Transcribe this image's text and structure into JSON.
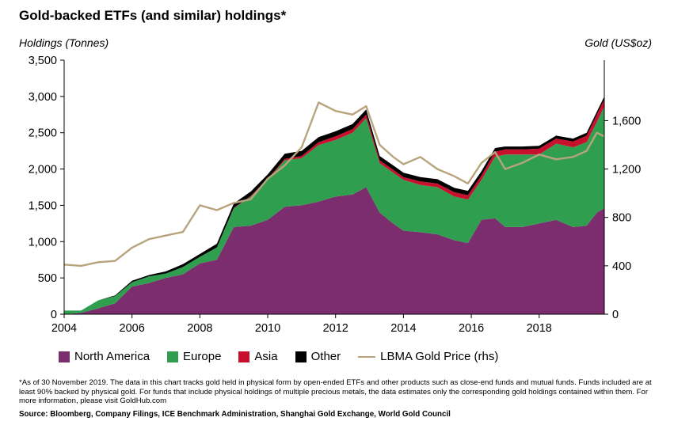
{
  "title": "Gold-backed ETFs (and similar) holdings*",
  "footnote": "*As of 30 November 2019. The data in this chart tracks gold held in physical form by open-ended  ETFs and other products such as close-end funds and mutual funds. Funds included are at least 90%  backed by physical gold. For funds that include physical holdings of multiple precious  metals, the data estimates only the corresponding gold holdings contained within them. For more information, please visit GoldHub.com",
  "source": "Source: Bloomberg, Company Filings, ICE Benchmark Administration,  Shanghai Gold Exchange, World Gold Council",
  "colors": {
    "north_america": "#7b2d6e",
    "europe": "#2f9f4f",
    "asia": "#c8102e",
    "other": "#000000",
    "gold_price": "#b8a47c"
  },
  "chart_data": {
    "type": "area",
    "title": "Gold-backed ETFs (and similar) holdings*",
    "ylabel": "Holdings (Tonnes)",
    "y2label": "Gold (US$oz)",
    "xlim": [
      2004,
      2019.92
    ],
    "ylim": [
      0,
      3500
    ],
    "y2lim": [
      0,
      2100
    ],
    "x_ticks": [
      "2004",
      "2006",
      "2008",
      "2010",
      "2012",
      "2014",
      "2016",
      "2018"
    ],
    "y_ticks": [
      "0",
      "500",
      "1,000",
      "1,500",
      "2,000",
      "2,500",
      "3,000",
      "3,500"
    ],
    "y2_ticks": [
      "0",
      "400",
      "800",
      "1,200",
      "1,600"
    ],
    "grid": false,
    "legend_position": "bottom",
    "x": [
      2004.0,
      2004.5,
      2005.0,
      2005.5,
      2006.0,
      2006.5,
      2007.0,
      2007.5,
      2008.0,
      2008.5,
      2009.0,
      2009.5,
      2010.0,
      2010.5,
      2011.0,
      2011.5,
      2012.0,
      2012.5,
      2012.9,
      2013.3,
      2013.7,
      2014.0,
      2014.5,
      2015.0,
      2015.5,
      2015.9,
      2016.3,
      2016.7,
      2017.0,
      2017.5,
      2018.0,
      2018.5,
      2019.0,
      2019.4,
      2019.7,
      2019.92
    ],
    "series": [
      {
        "name": "North America",
        "values": [
          0,
          20,
          80,
          150,
          380,
          430,
          500,
          550,
          700,
          750,
          1200,
          1220,
          1300,
          1480,
          1500,
          1550,
          1620,
          1650,
          1750,
          1400,
          1250,
          1150,
          1130,
          1100,
          1020,
          980,
          1300,
          1320,
          1200,
          1200,
          1250,
          1300,
          1200,
          1220,
          1400,
          1460
        ]
      },
      {
        "name": "Europe",
        "values": [
          50,
          30,
          110,
          100,
          60,
          90,
          60,
          100,
          90,
          170,
          260,
          400,
          550,
          640,
          650,
          780,
          780,
          850,
          950,
          680,
          700,
          700,
          650,
          650,
          600,
          600,
          550,
          850,
          1000,
          1000,
          950,
          1050,
          1100,
          1150,
          1250,
          1400
        ]
      },
      {
        "name": "Asia",
        "values": [
          0,
          0,
          0,
          0,
          0,
          0,
          0,
          0,
          0,
          0,
          5,
          10,
          15,
          20,
          30,
          40,
          50,
          50,
          50,
          40,
          40,
          40,
          50,
          50,
          60,
          60,
          60,
          70,
          70,
          70,
          80,
          70,
          80,
          90,
          100,
          100
        ]
      },
      {
        "name": "Other",
        "values": [
          0,
          0,
          0,
          10,
          20,
          20,
          30,
          40,
          40,
          50,
          60,
          60,
          60,
          70,
          70,
          70,
          70,
          70,
          70,
          60,
          60,
          60,
          60,
          60,
          60,
          60,
          60,
          50,
          40,
          40,
          40,
          40,
          40,
          40,
          40,
          40
        ]
      },
      {
        "name": "LBMA Gold Price (rhs)",
        "axis": "right",
        "values": [
          410,
          400,
          430,
          440,
          550,
          620,
          650,
          680,
          900,
          860,
          920,
          950,
          1120,
          1230,
          1380,
          1750,
          1680,
          1650,
          1720,
          1400,
          1300,
          1240,
          1300,
          1200,
          1140,
          1080,
          1250,
          1340,
          1200,
          1250,
          1320,
          1280,
          1300,
          1350,
          1500,
          1470
        ]
      }
    ]
  }
}
